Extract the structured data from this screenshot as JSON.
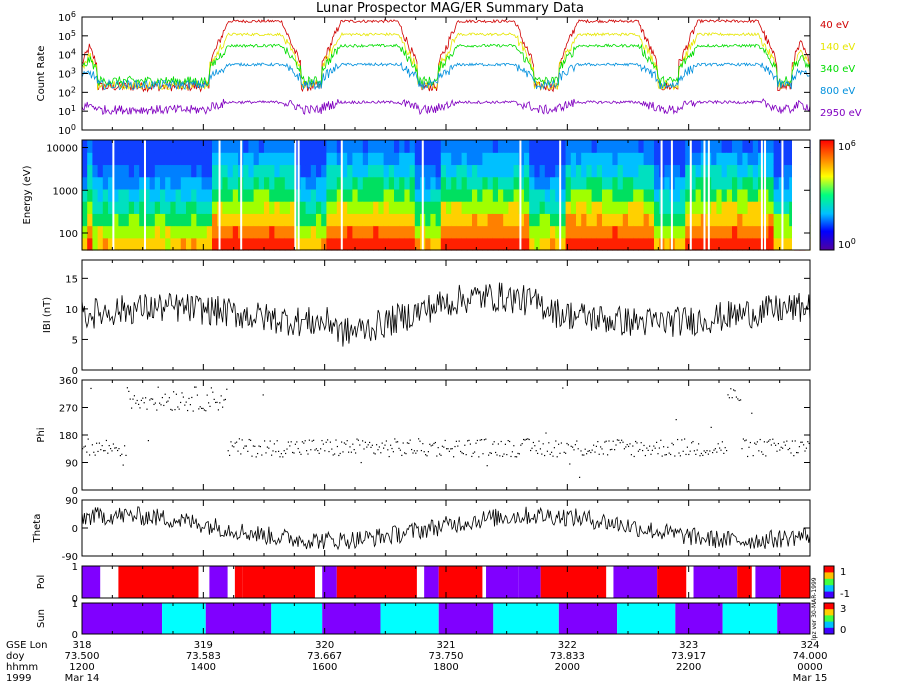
{
  "title": "Lunar Prospector MAG/ER Summary Data",
  "chart_data": [
    {
      "type": "line",
      "panel": "count-rate",
      "ylabel": "Count Rate",
      "yscale": "log",
      "ylim": [
        1,
        1000000
      ],
      "ytick_exponents": [
        "0",
        "1",
        "2",
        "3",
        "4",
        "5",
        "6"
      ],
      "ytick_base": "10",
      "series": [
        {
          "name": "40 eV",
          "color": "#d00000",
          "day": 600000,
          "night": 200
        },
        {
          "name": "140 eV",
          "color": "#e6e600",
          "day": 120000,
          "night": 250
        },
        {
          "name": "340 eV",
          "color": "#00dd00",
          "day": 30000,
          "night": 400
        },
        {
          "name": "800 eV",
          "color": "#0090dd",
          "day": 3000,
          "night": 250
        },
        {
          "name": "2950 eV",
          "color": "#8000c0",
          "day": 30,
          "night": 12
        }
      ]
    },
    {
      "type": "heatmap",
      "panel": "energy-spectrogram",
      "ylabel": "Energy (eV)",
      "yscale": "log",
      "ylim": [
        40,
        15000
      ],
      "yticks": [
        "100",
        "1000",
        "10000"
      ],
      "colorbar_top_base": "10",
      "colorbar_top_exp": "6",
      "colorbar_bottom_base": "10",
      "colorbar_bottom_exp": "0"
    },
    {
      "type": "line",
      "panel": "b-magnitude",
      "ylabel": "IBI (nT)",
      "ylim": [
        0,
        18
      ],
      "yticks": [
        "0",
        "5",
        "10",
        "15"
      ]
    },
    {
      "type": "scatter",
      "panel": "phi",
      "ylabel": "Phi",
      "ylim": [
        0,
        360
      ],
      "yticks": [
        "0",
        "90",
        "180",
        "270",
        "360"
      ]
    },
    {
      "type": "line",
      "panel": "theta",
      "ylabel": "Theta",
      "ylim": [
        -90,
        90
      ],
      "yticks": [
        "-90",
        "0",
        "90"
      ]
    },
    {
      "type": "heatmap",
      "panel": "pol",
      "ylabel": "Pol",
      "ylim": [
        0,
        1
      ],
      "yticks": [
        "0",
        "1"
      ],
      "colorbar_ticks": [
        "1",
        "-1"
      ],
      "side_note": "lpz ver 30-MAR-1999"
    },
    {
      "type": "heatmap",
      "panel": "sun",
      "ylabel": "Sun",
      "ylim": [
        0,
        1
      ],
      "yticks": [
        "0",
        "1"
      ],
      "colorbar_ticks": [
        "3",
        "0"
      ],
      "side_note": "lpz ver 30-MAR-1999"
    }
  ],
  "time_axis": {
    "row_labels": [
      "GSE Lon",
      "doy",
      "hhmm",
      "1999"
    ],
    "gse_lon": [
      "318",
      "319",
      "320",
      "321",
      "322",
      "323",
      "324"
    ],
    "doy": [
      "73.500",
      "73.583",
      "73.667",
      "73.750",
      "73.833",
      "73.917",
      "74.000"
    ],
    "hhmm": [
      "1200",
      "1400",
      "1600",
      "1800",
      "2000",
      "2200",
      "0000"
    ],
    "date_start": "Mar 14",
    "date_end": "Mar 15"
  },
  "colors": {
    "frame": "#000000",
    "pol_red": "#ff0000",
    "pol_purple": "#8000ff",
    "sun_cyan": "#00ffff",
    "sun_purple": "#8000ff"
  }
}
